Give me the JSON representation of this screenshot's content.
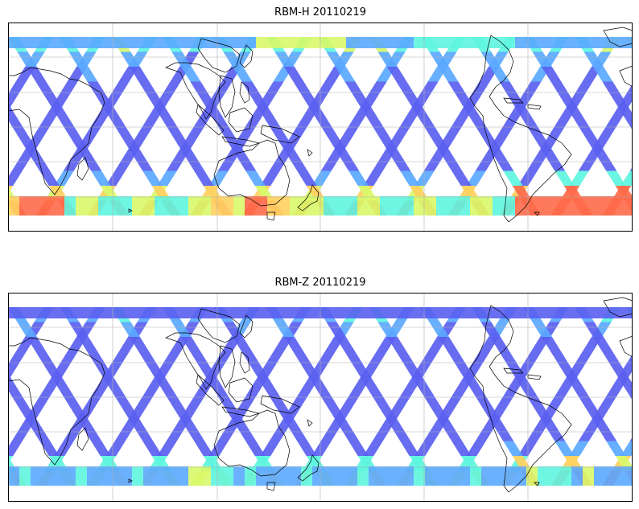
{
  "panels": [
    {
      "title": "RBM-H 20110219"
    },
    {
      "title": "RBM-Z 20110219"
    }
  ],
  "colors": {
    "low": "#5a5ff0",
    "low_mid": "#5aa8ff",
    "mid": "#5ef5e0",
    "mid_high": "#d8f86a",
    "high": "#ffd060",
    "highest": "#ff6a4a",
    "coast": "#000000",
    "grid": "#b0b0b0"
  },
  "map_layers": [
    "satellite-swath-tracks",
    "coastlines",
    "graticule"
  ]
}
